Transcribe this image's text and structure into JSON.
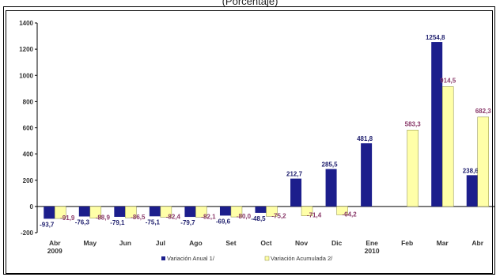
{
  "caption": "(Porcentaje)",
  "colors": {
    "series1": "#1c1e8c",
    "series2": "#ffffa8",
    "series2_border": "#8a8a40",
    "label1": "#1f1f6e",
    "label2": "#8a3a6a"
  },
  "chart_data": {
    "type": "bar",
    "categories": [
      [
        "Abr",
        "2009"
      ],
      [
        "May"
      ],
      [
        "Jun"
      ],
      [
        "Jul"
      ],
      [
        "Ago"
      ],
      [
        "Set"
      ],
      [
        "Oct"
      ],
      [
        "Nov"
      ],
      [
        "Dic"
      ],
      [
        "Ene",
        "2010"
      ],
      [
        "Feb"
      ],
      [
        "Mar"
      ],
      [
        "Abr"
      ]
    ],
    "series": [
      {
        "name": "Variación Anual 1/",
        "values": [
          -93.7,
          -76.3,
          -79.1,
          -75.1,
          -79.7,
          -69.6,
          -48.5,
          212.7,
          285.5,
          481.8,
          null,
          1254.8,
          238.6
        ],
        "labels": [
          "-93,7",
          "-76,3",
          "-79,1",
          "-75,1",
          "-79,7",
          "-69,6",
          "-48,5",
          "212,7",
          "285,5",
          "481,8",
          "",
          "1254,8",
          "238,6"
        ]
      },
      {
        "name": "Variación Acumulada 2/",
        "values": [
          -91.9,
          -88.9,
          -86.5,
          -82.4,
          -82.1,
          -80.0,
          -75.2,
          -71.4,
          -64.2,
          null,
          583.3,
          914.5,
          682.3
        ],
        "labels": [
          "-91,9",
          "-88,9",
          "-86,5",
          "-82,4",
          "-82,1",
          "-80,0",
          "-75,2",
          "-71,4",
          "-64,2",
          "",
          "583,3",
          "914,5",
          "682,3"
        ]
      }
    ],
    "y_ticks": [
      -200,
      0,
      200,
      400,
      600,
      800,
      1000,
      1200,
      1400
    ],
    "ylim": [
      -200,
      1400
    ],
    "grid": false,
    "legend_position": "bottom"
  }
}
